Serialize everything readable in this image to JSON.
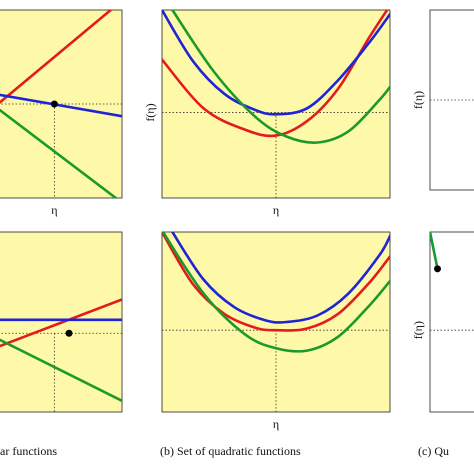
{
  "captions": {
    "a": "ar functions",
    "b": "(b) Set of quadratic functions",
    "c": "(c) Qu"
  },
  "colors": {
    "background": "#fdf9a8",
    "red": "#e41a1c",
    "blue": "#1f24d6",
    "green": "#1a9a2a",
    "dotted": "#333333",
    "marker": "#000000"
  },
  "chart_data": [
    {
      "id": "a-top",
      "type": "line",
      "xlabel": "η",
      "ylabel": "",
      "grid": false,
      "background": "yellow",
      "series": [
        {
          "color": "red",
          "kind": "linear",
          "x": [
            -0.5,
            0.6
          ],
          "y": [
            0.0,
            1.1
          ]
        },
        {
          "color": "blue",
          "kind": "linear",
          "x": [
            -0.5,
            0.6
          ],
          "y": [
            0.1,
            -0.13
          ]
        },
        {
          "color": "green",
          "kind": "linear",
          "x": [
            -0.5,
            0.6
          ],
          "y": [
            -0.05,
            -1.05
          ]
        }
      ],
      "marker": {
        "x": 0.0,
        "y": 0.0
      },
      "hline": 0.0,
      "xlim": [
        -0.5,
        0.6
      ],
      "ylim": [
        -1.0,
        1.0
      ]
    },
    {
      "id": "b-top",
      "type": "line",
      "xlabel": "η",
      "ylabel": "f(η)",
      "grid": false,
      "background": "yellow",
      "series": [
        {
          "color": "red",
          "kind": "quadratic",
          "x": [
            -1.1,
            -0.7,
            -0.3,
            0.0,
            0.3,
            0.6,
            0.9,
            1.1
          ],
          "y": [
            0.62,
            0.05,
            -0.2,
            -0.27,
            -0.1,
            0.28,
            0.88,
            1.25
          ]
        },
        {
          "color": "blue",
          "kind": "quadratic",
          "x": [
            -1.1,
            -0.8,
            -0.5,
            -0.2,
            0.0,
            0.3,
            0.6,
            0.9,
            1.1
          ],
          "y": [
            1.2,
            0.6,
            0.22,
            0.03,
            -0.02,
            0.05,
            0.38,
            0.82,
            1.15
          ]
        },
        {
          "color": "green",
          "kind": "quadratic",
          "x": [
            -1.0,
            -0.6,
            -0.2,
            0.1,
            0.4,
            0.7,
            1.0,
            1.1
          ],
          "y": [
            1.2,
            0.48,
            -0.05,
            -0.28,
            -0.35,
            -0.22,
            0.15,
            0.3
          ]
        }
      ],
      "hline": 0.0,
      "xlim": [
        -1.1,
        1.1
      ],
      "ylim": [
        -1.0,
        1.2
      ]
    },
    {
      "id": "c-top",
      "type": "line",
      "xlabel": "",
      "ylabel": "f(η)",
      "grid": false,
      "background": "white",
      "series": [],
      "hline": 0.0,
      "xlim": [
        -1.0,
        1.0
      ],
      "ylim": [
        -1.0,
        1.0
      ]
    },
    {
      "id": "a-bottom",
      "type": "line",
      "xlabel": "",
      "ylabel": "",
      "grid": false,
      "background": "yellow",
      "series": [
        {
          "color": "red",
          "kind": "linear",
          "x": [
            -0.5,
            0.6
          ],
          "y": [
            -0.12,
            0.3
          ]
        },
        {
          "color": "blue",
          "kind": "linear",
          "x": [
            -0.5,
            0.6
          ],
          "y": [
            0.12,
            0.12
          ]
        },
        {
          "color": "green",
          "kind": "linear",
          "x": [
            -0.5,
            0.6
          ],
          "y": [
            -0.05,
            -0.6
          ]
        }
      ],
      "marker": {
        "x": 0.13,
        "y": 0.0
      },
      "hline": 0.0,
      "xlim": [
        -0.5,
        0.6
      ],
      "ylim": [
        -0.7,
        0.9
      ]
    },
    {
      "id": "b-bottom",
      "type": "line",
      "xlabel": "η",
      "ylabel": "",
      "grid": false,
      "background": "yellow",
      "series": [
        {
          "color": "red",
          "kind": "quadratic",
          "x": [
            -1.1,
            -0.8,
            -0.5,
            -0.2,
            0.0,
            0.3,
            0.6,
            0.9,
            1.1
          ],
          "y": [
            1.2,
            0.56,
            0.2,
            0.03,
            0.0,
            0.02,
            0.2,
            0.58,
            0.9
          ]
        },
        {
          "color": "blue",
          "kind": "quadratic",
          "x": [
            -1.0,
            -0.7,
            -0.4,
            -0.1,
            0.1,
            0.4,
            0.7,
            1.0,
            1.1
          ],
          "y": [
            1.2,
            0.62,
            0.28,
            0.12,
            0.1,
            0.18,
            0.45,
            0.92,
            1.15
          ]
        },
        {
          "color": "green",
          "kind": "quadratic",
          "x": [
            -1.1,
            -0.7,
            -0.3,
            0.0,
            0.3,
            0.6,
            0.9,
            1.1
          ],
          "y": [
            1.22,
            0.45,
            -0.05,
            -0.22,
            -0.25,
            -0.08,
            0.3,
            0.6
          ]
        }
      ],
      "hline": 0.0,
      "xlim": [
        -1.1,
        1.1
      ],
      "ylim": [
        -1.0,
        1.2
      ]
    },
    {
      "id": "c-bottom",
      "type": "line",
      "xlabel": "",
      "ylabel": "f(η)",
      "grid": false,
      "background": "white",
      "series": [
        {
          "color": "green",
          "kind": "linear",
          "x": [
            -1.0,
            -0.7
          ],
          "y": [
            1.2,
            0.75
          ]
        }
      ],
      "marker": {
        "x": -0.7,
        "y": 0.75
      },
      "hline": 0.0,
      "xlim": [
        -1.0,
        1.0
      ],
      "ylim": [
        -1.0,
        1.2
      ]
    }
  ]
}
